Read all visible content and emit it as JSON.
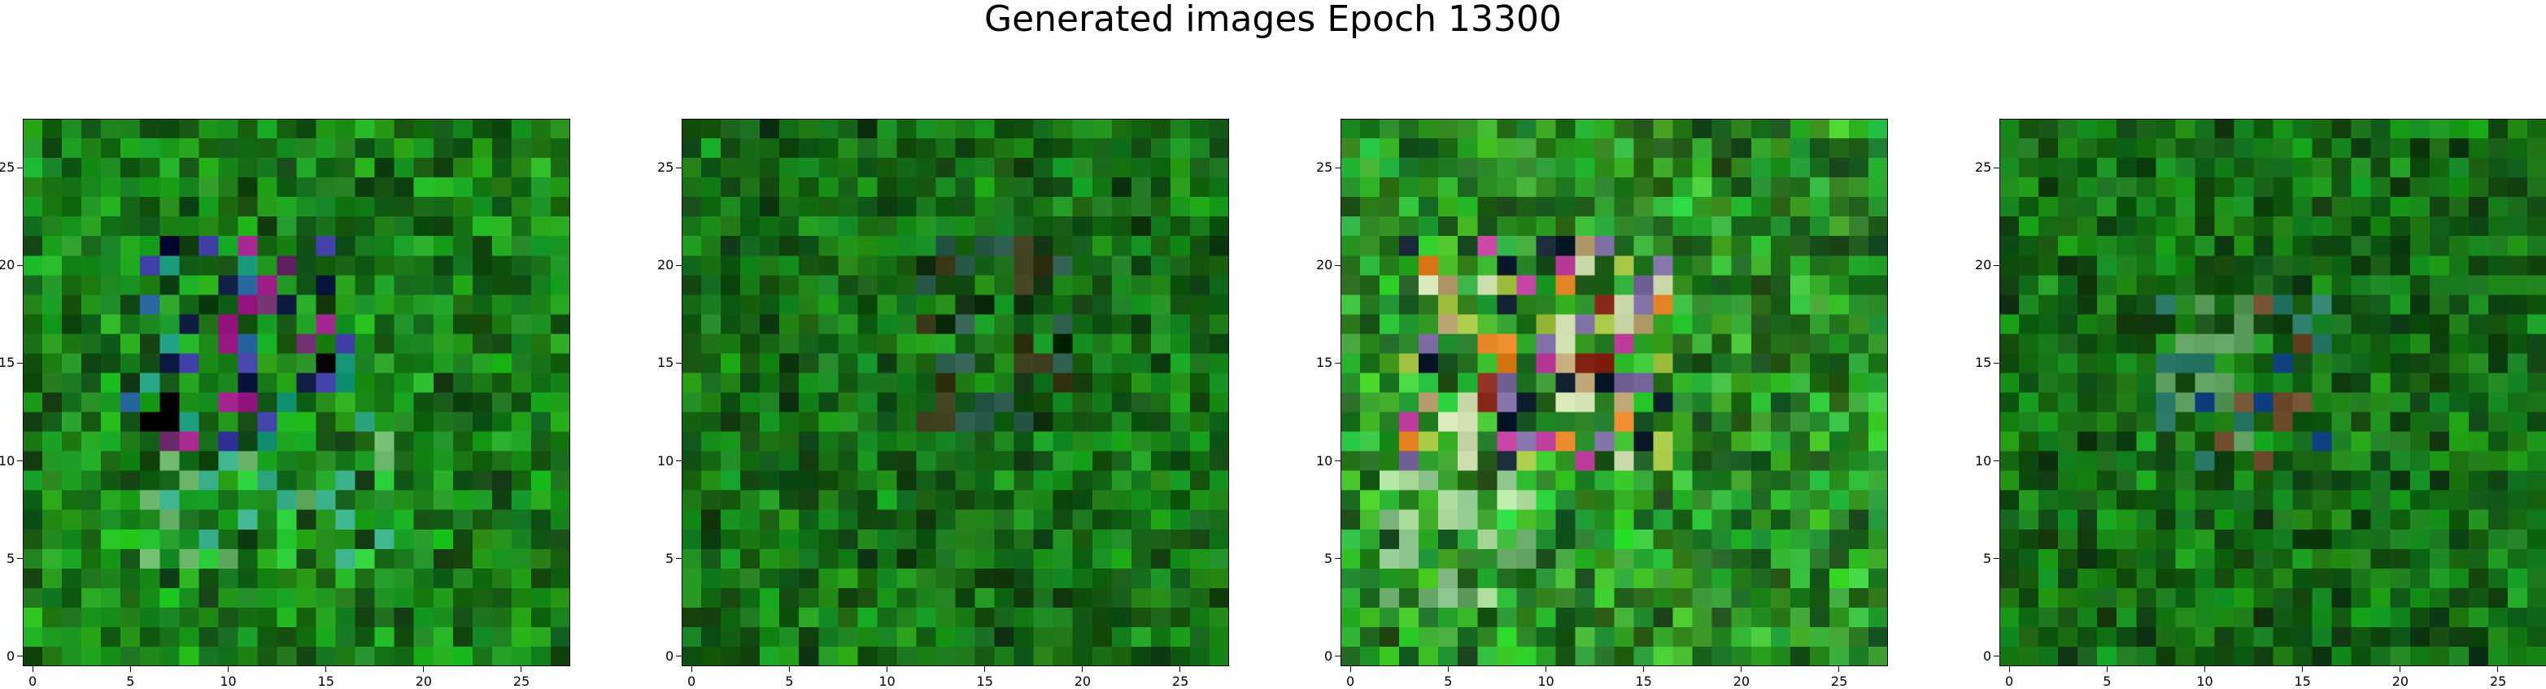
{
  "figure": {
    "title": "Generated images Epoch 13300"
  },
  "chart_data": {
    "type": "heatmap",
    "title": "Generated images Epoch 13300",
    "description_units": "each panel is a 28x28 RGB image shown with pixel-index axes",
    "axis": {
      "x_ticks": [
        0,
        5,
        10,
        15,
        20,
        25
      ],
      "y_ticks": [
        0,
        5,
        10,
        15,
        20,
        25
      ],
      "xlim": [
        -0.5,
        27.5
      ],
      "ylim": [
        27.5,
        -0.5
      ]
    },
    "grid_size": 28,
    "panels": [
      {
        "name": "",
        "base_color": "#1a7d1a",
        "regions": [
          {
            "rows": [
              6,
              16
            ],
            "cols": [
              5,
              16
            ],
            "dominant_colors": [
              "#08153a",
              "#6a2a6a",
              "#1a9a7a",
              "#3a3aa0",
              "#a0208a",
              "#2a6aa0",
              "#000000"
            ]
          },
          {
            "rows": [
              15,
              22
            ],
            "cols": [
              6,
              18
            ],
            "dominant_colors": [
              "#2ccf3a",
              "#6ab46a",
              "#3ab08a"
            ]
          }
        ]
      },
      {
        "name": "",
        "base_color": "#176e17",
        "regions": [
          {
            "rows": [
              6,
              15
            ],
            "cols": [
              12,
              19
            ],
            "dominant_colors": [
              "#0a2a0a",
              "#3a3a1a",
              "#2a5a4a"
            ]
          }
        ]
      },
      {
        "name": "",
        "base_color": "#2a8f26",
        "regions": [
          {
            "rows": [
              6,
              17
            ],
            "cols": [
              3,
              16
            ],
            "dominant_colors": [
              "#7a6aa0",
              "#8a2a1a",
              "#b8a070",
              "#d0e0b0",
              "#c040a0",
              "#e08020",
              "#102030",
              "#a0c040"
            ]
          },
          {
            "rows": [
              16,
              24
            ],
            "cols": [
              2,
              9
            ],
            "dominant_colors": [
              "#8ac08a",
              "#b0e0a0",
              "#60a060"
            ]
          }
        ]
      },
      {
        "name": "",
        "base_color": "#166c16",
        "regions": [
          {
            "rows": [
              9,
              17
            ],
            "cols": [
              8,
              16
            ],
            "dominant_colors": [
              "#1a4a8a",
              "#5a9a5a",
              "#6a4a2a",
              "#2a7a6a"
            ]
          }
        ]
      }
    ]
  }
}
